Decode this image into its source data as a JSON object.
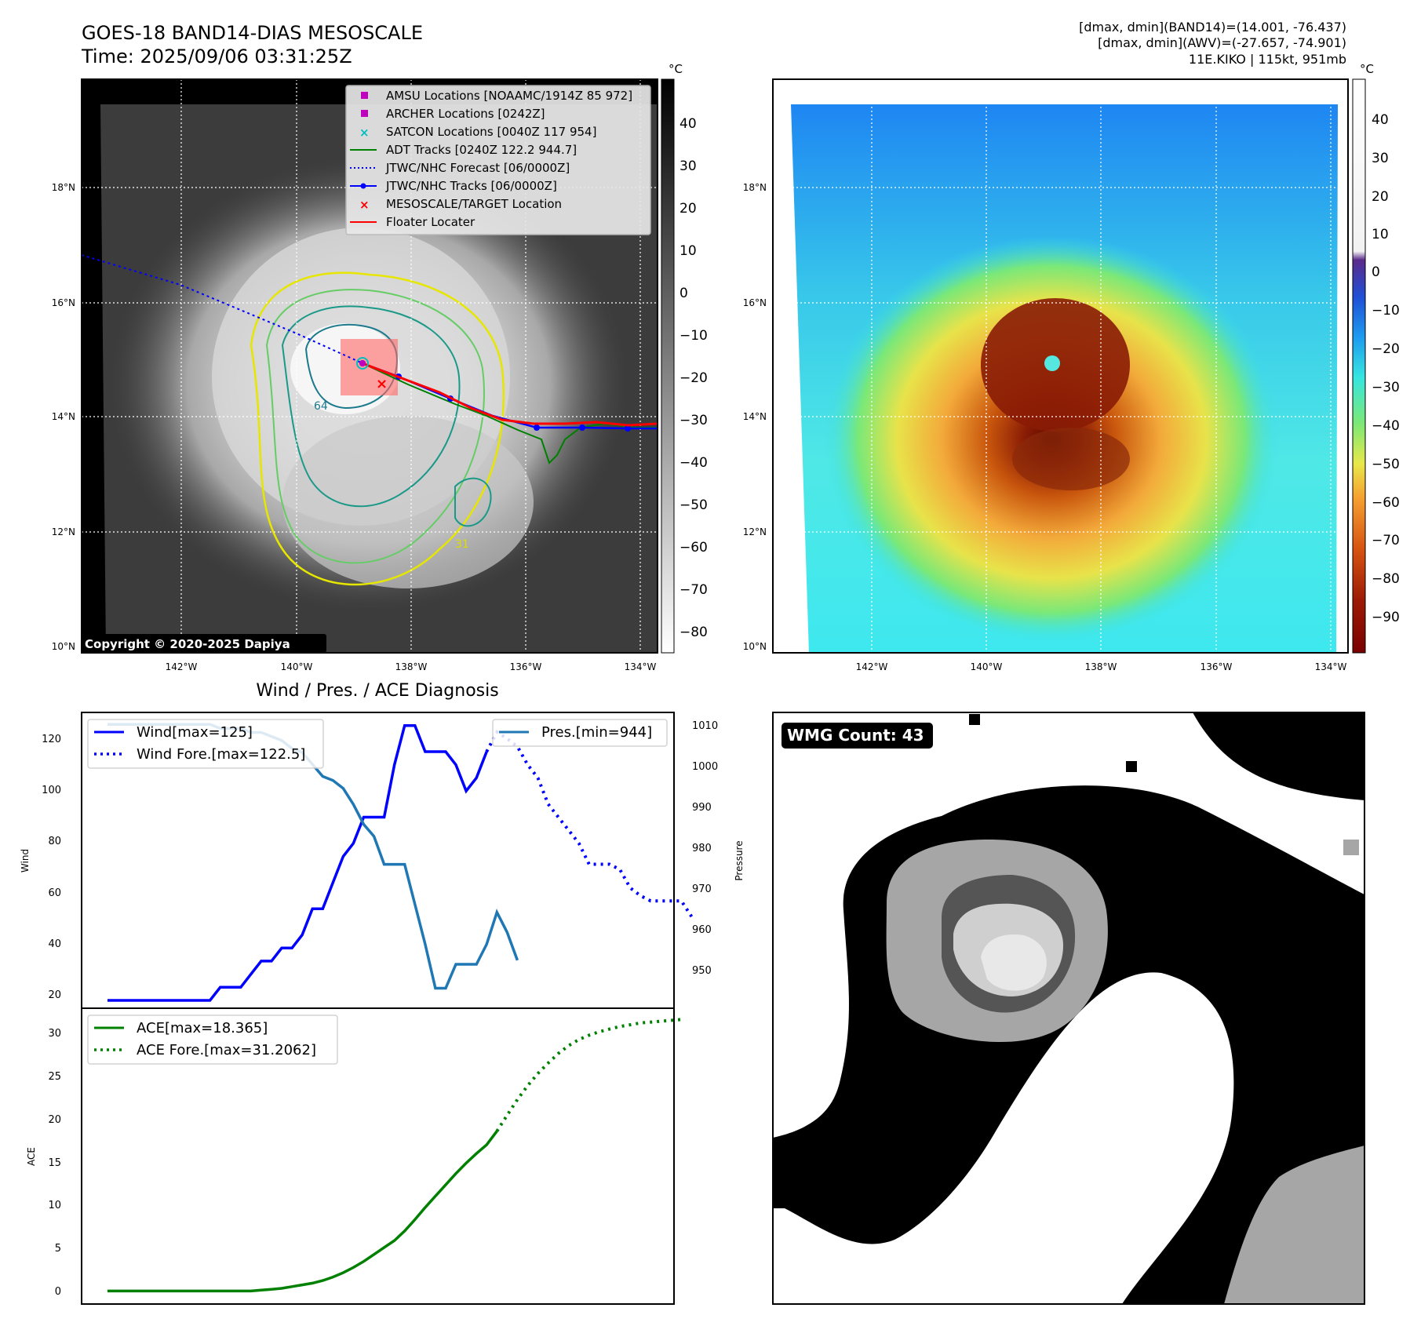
{
  "header": {
    "title_line1": "GOES-18 BAND14-DIAS MESOSCALE",
    "title_line2": "Time: 2025/09/06 03:31:25Z",
    "info_line1": "[dmax, dmin](BAND14)=(14.001, -76.437)",
    "info_line2": "[dmax, dmin](AWV)=(-27.657, -74.901)",
    "info_line3": "11E.KIKO | 115kt, 951mb"
  },
  "map_common": {
    "lat_labels": [
      "18°N",
      "16°N",
      "14°N",
      "12°N",
      "10°N"
    ],
    "lon_labels": [
      "142°W",
      "140°W",
      "138°W",
      "136°W",
      "134°W"
    ]
  },
  "panel_tl": {
    "legend": [
      {
        "label": "AMSU Locations [NOAAMC/1914Z 85 972]",
        "color": "#bf00bf",
        "marker": "square"
      },
      {
        "label": "ARCHER Locations [0242Z]",
        "color": "#bf00bf",
        "marker": "square"
      },
      {
        "label": "SATCON Locations [0040Z 117 954]",
        "color": "#00bfbf",
        "marker": "x"
      },
      {
        "label": "ADT Tracks [0240Z 122.2 944.7]",
        "color": "#008000",
        "marker": "line"
      },
      {
        "label": "JTWC/NHC Forecast [06/0000Z]",
        "color": "#0000ff",
        "marker": "dotted"
      },
      {
        "label": "JTWC/NHC Tracks [06/0000Z]",
        "color": "#0000ff",
        "marker": "line-dot"
      },
      {
        "label": "MESOSCALE/TARGET Location",
        "color": "#ff0000",
        "marker": "x"
      },
      {
        "label": "Floater Locater",
        "color": "#ff0000",
        "marker": "line"
      }
    ],
    "contour_labels": [
      "64",
      "31"
    ],
    "copyright": "Copyright © 2020-2025 Dapiya",
    "colorbar_unit": "°C",
    "colorbar_ticks": [
      "40",
      "30",
      "20",
      "10",
      "0",
      "−10",
      "−20",
      "−30",
      "−40",
      "−50",
      "−60",
      "−70",
      "−80"
    ]
  },
  "panel_tr": {
    "colorbar_unit": "°C",
    "colorbar_ticks": [
      "40",
      "30",
      "20",
      "10",
      "0",
      "−10",
      "−20",
      "−30",
      "−40",
      "−50",
      "−60",
      "−70",
      "−80",
      "−90"
    ]
  },
  "panel_bl": {
    "title": "Wind / Pres. / ACE Diagnosis",
    "legend_wind": "Wind[max=125]",
    "legend_wind_fore": "Wind Fore.[max=122.5]",
    "legend_pres": "Pres.[min=944]",
    "legend_ace": "ACE[max=18.365]",
    "legend_ace_fore": "ACE Fore.[max=31.2062]",
    "ylabel_wind": "Wind",
    "ylabel_pres": "Pressure",
    "ylabel_ace": "ACE",
    "wind_ticks": [
      "120",
      "100",
      "80",
      "60",
      "40",
      "20"
    ],
    "pres_ticks": [
      "1010",
      "1000",
      "990",
      "980",
      "970",
      "960",
      "950"
    ],
    "ace_ticks": [
      "30",
      "25",
      "20",
      "15",
      "10",
      "5",
      "0"
    ]
  },
  "panel_br": {
    "badge": "WMG Count: 43"
  },
  "chart_data": [
    {
      "type": "line",
      "title": "Wind / Pres. / ACE Diagnosis",
      "ylabel": "Wind",
      "ylim": [
        17,
        130
      ],
      "series": [
        {
          "name": "Wind[max=125]",
          "color": "#0000ff",
          "style": "solid",
          "values": [
            20,
            20,
            20,
            20,
            20,
            20,
            20,
            20,
            20,
            20,
            20,
            25,
            25,
            25,
            30,
            35,
            35,
            40,
            40,
            45,
            55,
            55,
            65,
            75,
            80,
            90,
            90,
            90,
            110,
            125,
            125,
            115,
            115,
            115,
            110,
            100,
            105,
            115
          ]
        },
        {
          "name": "Wind Fore.[max=122.5]",
          "color": "#0000ff",
          "style": "dotted",
          "start_index": 37,
          "values": [
            115,
            122.5,
            120,
            117,
            110,
            105,
            95,
            90,
            85,
            80,
            72,
            72,
            72,
            70,
            63,
            60,
            58,
            58,
            58,
            58,
            52
          ]
        }
      ]
    },
    {
      "type": "line",
      "ylabel": "Pressure",
      "ylim": [
        939,
        1013
      ],
      "series": [
        {
          "name": "Pres.[min=944]",
          "color": "#1f77b4",
          "style": "solid",
          "values": [
            1010,
            1010,
            1010,
            1010,
            1010,
            1010,
            1010,
            1010,
            1010,
            1010,
            1010,
            1009,
            1009,
            1009,
            1008,
            1008,
            1007,
            1006,
            1004,
            1003,
            1000,
            997,
            996,
            994,
            990,
            985,
            982,
            975,
            975,
            975,
            965,
            955,
            944,
            944,
            950,
            950,
            950,
            955,
            963,
            958,
            951
          ]
        }
      ]
    },
    {
      "type": "line",
      "ylabel": "ACE",
      "ylim": [
        -1.5,
        32.5
      ],
      "series": [
        {
          "name": "ACE[max=18.365]",
          "color": "#008000",
          "style": "solid",
          "values": [
            0,
            0,
            0,
            0,
            0,
            0,
            0,
            0,
            0,
            0,
            0,
            0,
            0,
            0,
            0,
            0.1,
            0.2,
            0.3,
            0.5,
            0.7,
            0.9,
            1.2,
            1.6,
            2.1,
            2.7,
            3.4,
            4.2,
            5.0,
            5.8,
            6.9,
            8.2,
            9.6,
            10.9,
            12.2,
            13.5,
            14.7,
            15.8,
            16.8,
            18.365
          ]
        },
        {
          "name": "ACE Fore.[max=31.2062]",
          "color": "#008000",
          "style": "dotted",
          "start_index": 38,
          "values": [
            18.365,
            20.2,
            22.0,
            23.6,
            25.0,
            26.2,
            27.3,
            28.2,
            28.9,
            29.4,
            29.8,
            30.1,
            30.4,
            30.6,
            30.8,
            30.9,
            31.0,
            31.1,
            31.2062
          ]
        }
      ]
    }
  ]
}
